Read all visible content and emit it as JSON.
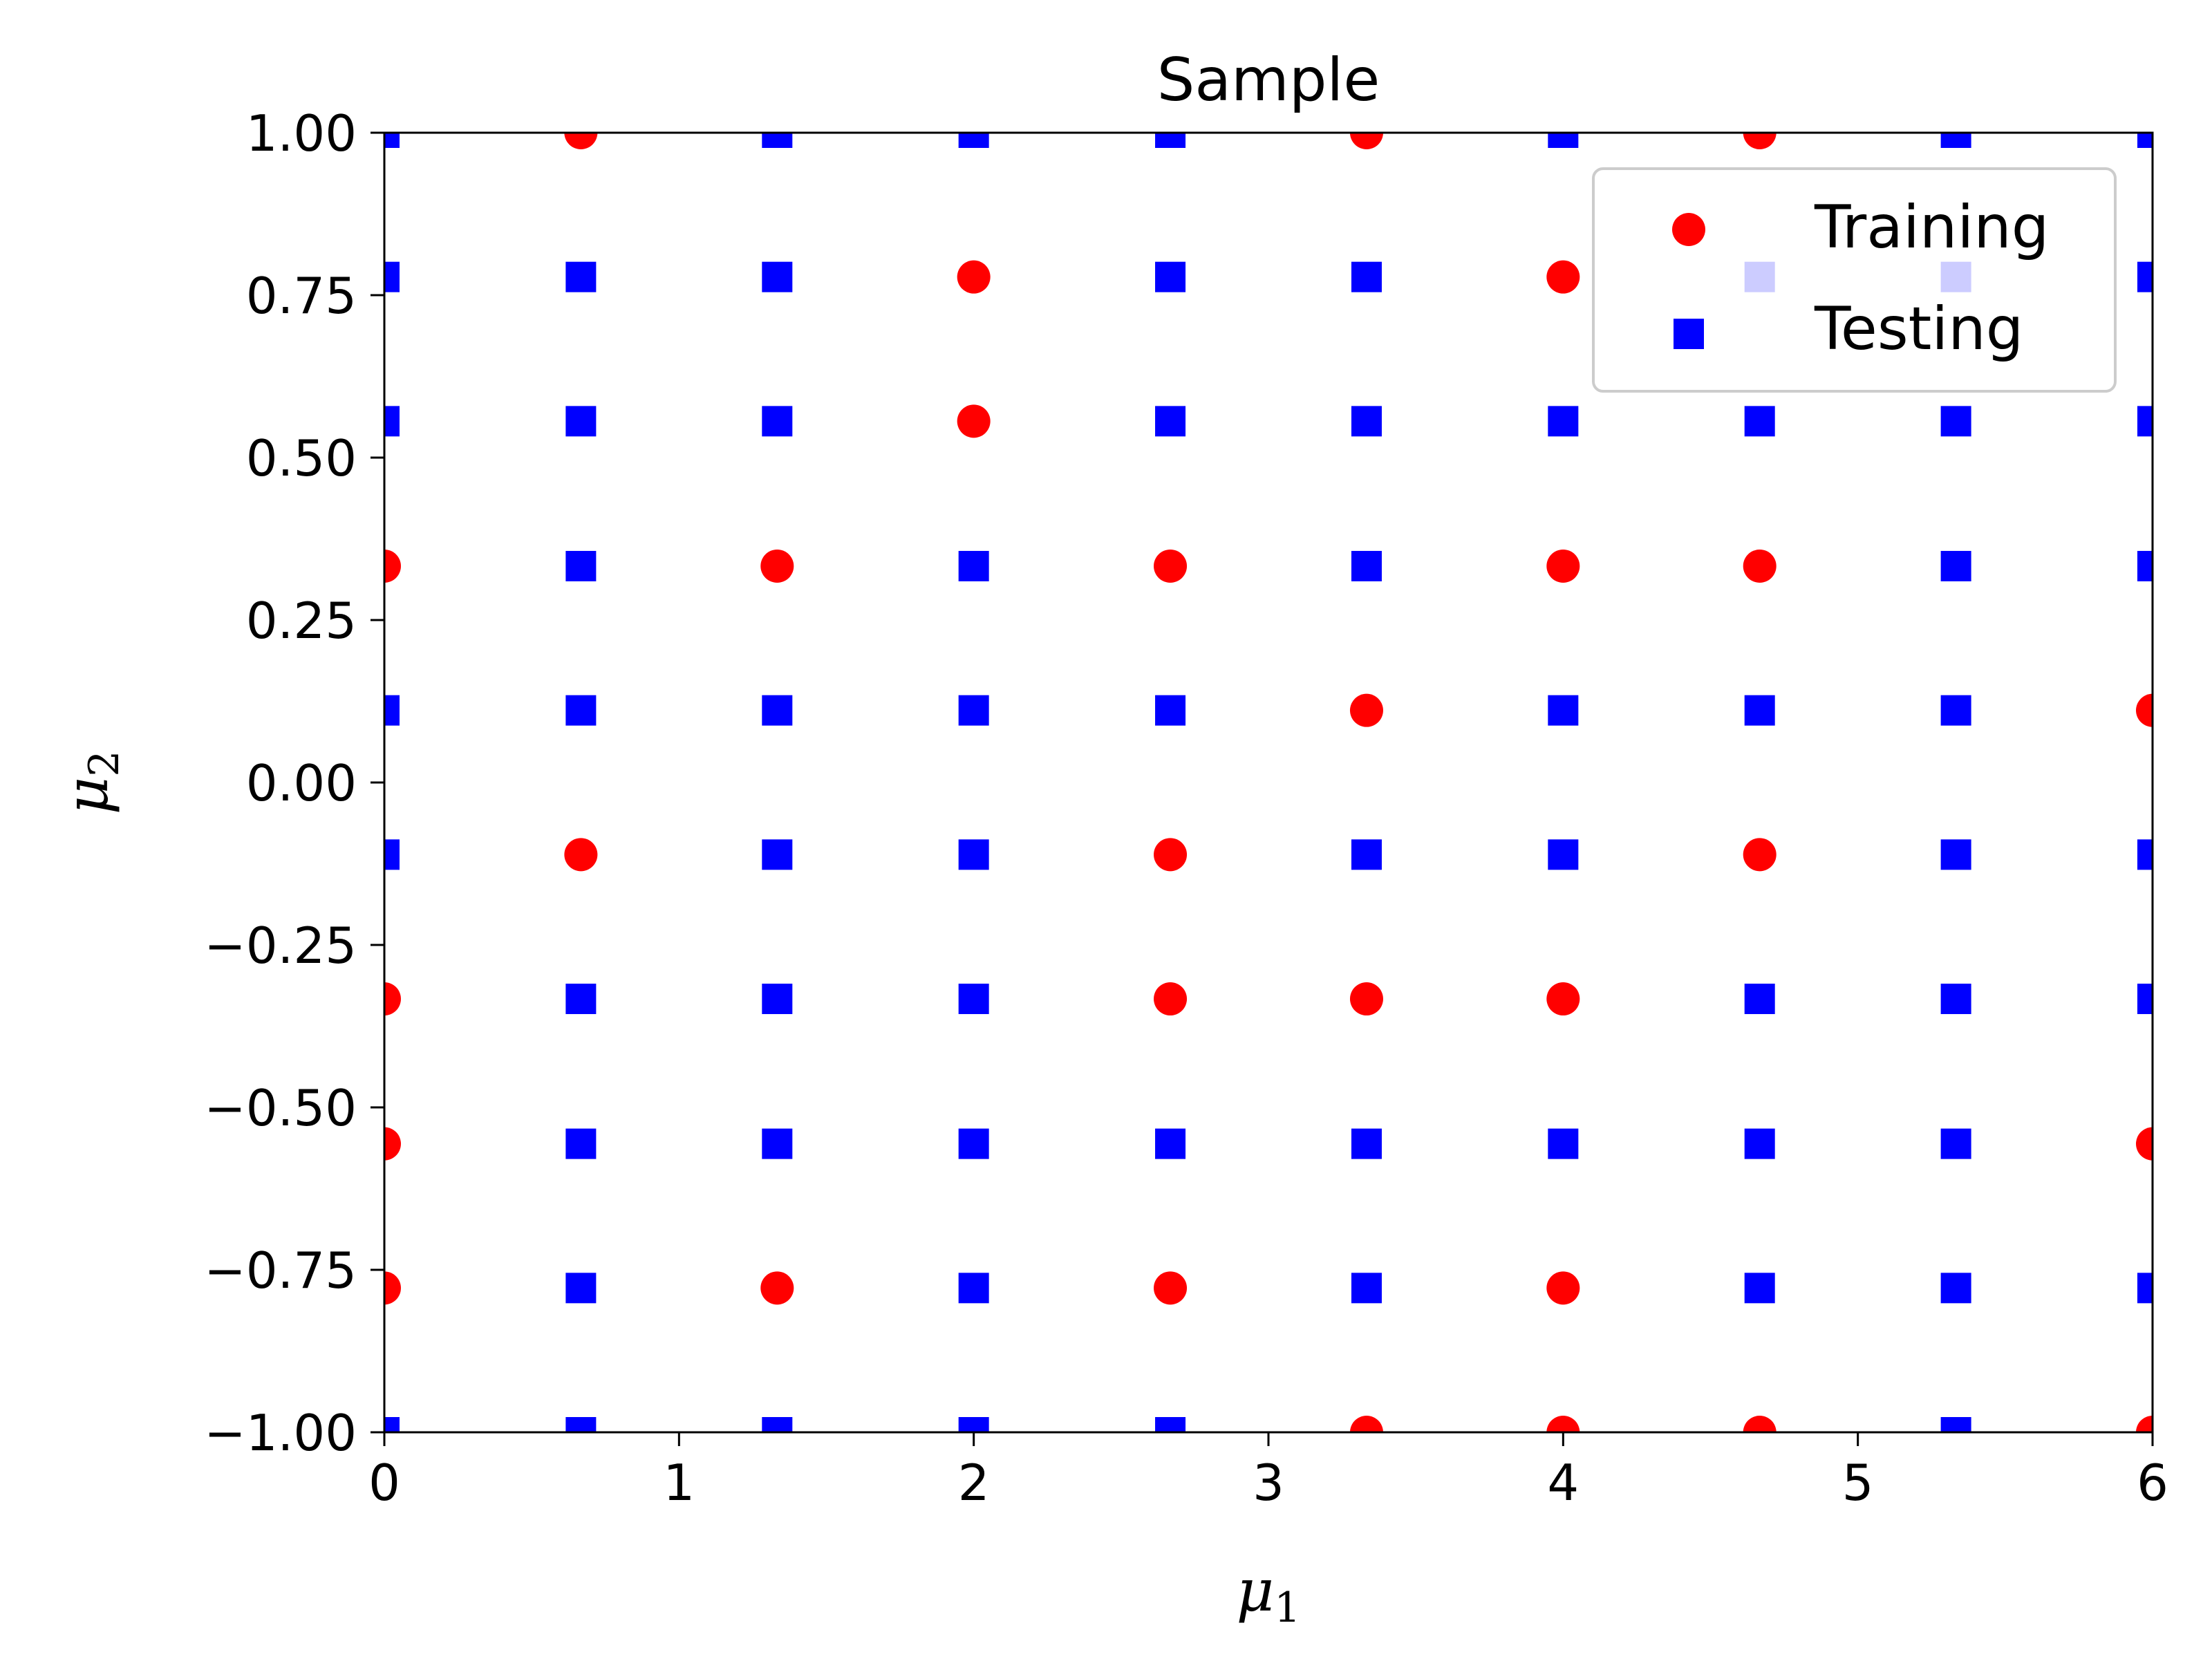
{
  "chart_data": {
    "type": "scatter",
    "title": "Sample",
    "xlabel": "μ",
    "xlabel_sub": "1",
    "ylabel": "μ",
    "ylabel_sub": "2",
    "xlim": [
      0,
      6
    ],
    "ylim": [
      -1,
      1
    ],
    "xticks": [
      0,
      1,
      2,
      3,
      4,
      5,
      6
    ],
    "xtick_labels": [
      "0",
      "1",
      "2",
      "3",
      "4",
      "5",
      "6"
    ],
    "yticks": [
      -1,
      -0.75,
      -0.5,
      -0.25,
      0,
      0.25,
      0.5,
      0.75,
      1
    ],
    "ytick_labels": [
      "−1.00",
      "−0.75",
      "−0.50",
      "−0.25",
      "0.00",
      "0.25",
      "0.50",
      "0.75",
      "1.00"
    ],
    "grid": false,
    "legend": {
      "position": "top-right"
    },
    "series": [
      {
        "name": "Training",
        "marker": "circle",
        "color": "#ff0000",
        "points": [
          [
            0.667,
            1.0
          ],
          [
            3.333,
            1.0
          ],
          [
            4.667,
            1.0
          ],
          [
            2.0,
            0.778
          ],
          [
            4.0,
            0.778
          ],
          [
            2.0,
            0.556
          ],
          [
            0.0,
            0.333
          ],
          [
            1.333,
            0.333
          ],
          [
            2.667,
            0.333
          ],
          [
            4.0,
            0.333
          ],
          [
            4.667,
            0.333
          ],
          [
            3.333,
            0.111
          ],
          [
            6.0,
            0.111
          ],
          [
            0.667,
            -0.111
          ],
          [
            2.667,
            -0.111
          ],
          [
            4.667,
            -0.111
          ],
          [
            0.0,
            -0.333
          ],
          [
            2.667,
            -0.333
          ],
          [
            3.333,
            -0.333
          ],
          [
            4.0,
            -0.333
          ],
          [
            0.0,
            -0.556
          ],
          [
            6.0,
            -0.556
          ],
          [
            0.0,
            -0.778
          ],
          [
            1.333,
            -0.778
          ],
          [
            2.667,
            -0.778
          ],
          [
            4.0,
            -0.778
          ],
          [
            3.333,
            -1.0
          ],
          [
            4.0,
            -1.0
          ],
          [
            4.667,
            -1.0
          ],
          [
            6.0,
            -1.0
          ]
        ]
      },
      {
        "name": "Testing",
        "marker": "square",
        "color": "#0000ff",
        "points": [
          [
            0.0,
            1.0
          ],
          [
            1.333,
            1.0
          ],
          [
            2.0,
            1.0
          ],
          [
            2.667,
            1.0
          ],
          [
            4.0,
            1.0
          ],
          [
            5.333,
            1.0
          ],
          [
            6.0,
            1.0
          ],
          [
            0.0,
            0.778
          ],
          [
            0.667,
            0.778
          ],
          [
            1.333,
            0.778
          ],
          [
            2.667,
            0.778
          ],
          [
            3.333,
            0.778
          ],
          [
            4.667,
            0.778
          ],
          [
            5.333,
            0.778
          ],
          [
            6.0,
            0.778
          ],
          [
            0.0,
            0.556
          ],
          [
            0.667,
            0.556
          ],
          [
            1.333,
            0.556
          ],
          [
            2.667,
            0.556
          ],
          [
            3.333,
            0.556
          ],
          [
            4.0,
            0.556
          ],
          [
            4.667,
            0.556
          ],
          [
            5.333,
            0.556
          ],
          [
            6.0,
            0.556
          ],
          [
            0.667,
            0.333
          ],
          [
            2.0,
            0.333
          ],
          [
            3.333,
            0.333
          ],
          [
            5.333,
            0.333
          ],
          [
            6.0,
            0.333
          ],
          [
            0.0,
            0.111
          ],
          [
            0.667,
            0.111
          ],
          [
            1.333,
            0.111
          ],
          [
            2.0,
            0.111
          ],
          [
            2.667,
            0.111
          ],
          [
            4.0,
            0.111
          ],
          [
            4.667,
            0.111
          ],
          [
            5.333,
            0.111
          ],
          [
            0.0,
            -0.111
          ],
          [
            1.333,
            -0.111
          ],
          [
            2.0,
            -0.111
          ],
          [
            3.333,
            -0.111
          ],
          [
            4.0,
            -0.111
          ],
          [
            5.333,
            -0.111
          ],
          [
            6.0,
            -0.111
          ],
          [
            0.667,
            -0.333
          ],
          [
            1.333,
            -0.333
          ],
          [
            2.0,
            -0.333
          ],
          [
            4.667,
            -0.333
          ],
          [
            5.333,
            -0.333
          ],
          [
            6.0,
            -0.333
          ],
          [
            0.667,
            -0.556
          ],
          [
            1.333,
            -0.556
          ],
          [
            2.0,
            -0.556
          ],
          [
            2.667,
            -0.556
          ],
          [
            3.333,
            -0.556
          ],
          [
            4.0,
            -0.556
          ],
          [
            4.667,
            -0.556
          ],
          [
            5.333,
            -0.556
          ],
          [
            0.667,
            -0.778
          ],
          [
            2.0,
            -0.778
          ],
          [
            3.333,
            -0.778
          ],
          [
            4.667,
            -0.778
          ],
          [
            5.333,
            -0.778
          ],
          [
            6.0,
            -0.778
          ],
          [
            0.0,
            -1.0
          ],
          [
            0.667,
            -1.0
          ],
          [
            1.333,
            -1.0
          ],
          [
            2.0,
            -1.0
          ],
          [
            2.667,
            -1.0
          ],
          [
            5.333,
            -1.0
          ]
        ]
      }
    ]
  }
}
